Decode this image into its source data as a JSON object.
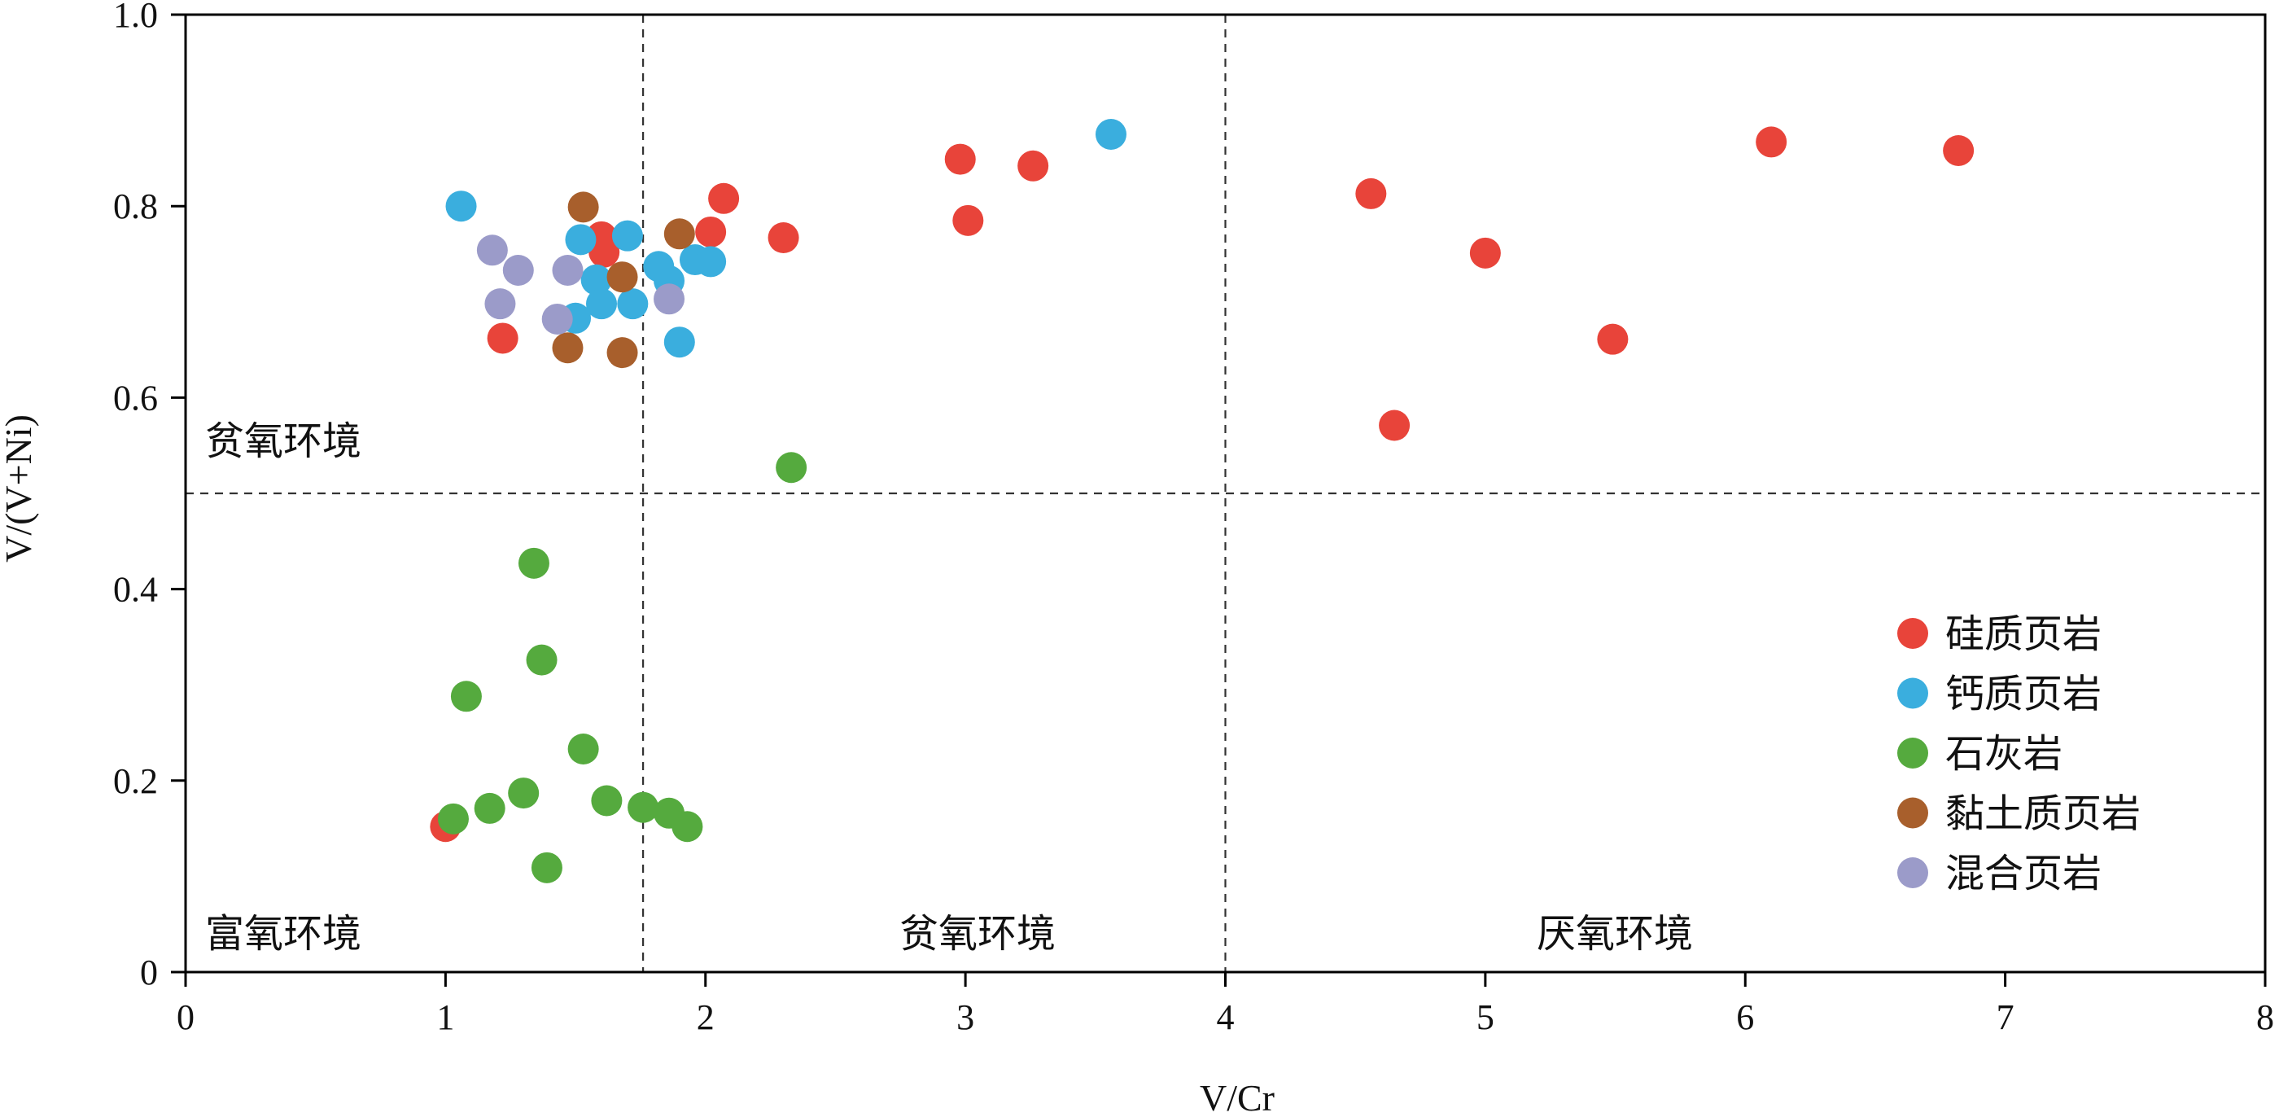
{
  "chart_data": {
    "type": "scatter",
    "xlabel": "V/Cr",
    "ylabel": "V/(V+Ni)",
    "xlim": [
      0,
      8
    ],
    "ylim": [
      0,
      1.0
    ],
    "x_ticks": [
      "0",
      "1",
      "2",
      "3",
      "4",
      "5",
      "6",
      "7",
      "8"
    ],
    "y_ticks": [
      "0",
      "0.2",
      "0.4",
      "0.6",
      "0.8",
      "1.0"
    ],
    "grid": false,
    "legend_position": "bottom-right",
    "divider_lines": {
      "vertical": [
        1.76,
        4.0
      ],
      "horizontal": [
        0.5
      ]
    },
    "zone_labels": {
      "top_left": "贫氧环境",
      "bottom_left": "富氧环境",
      "bottom_middle": "贫氧环境",
      "bottom_right": "厌氧环境"
    },
    "series": [
      {
        "name": "硅质页岩",
        "color": "#e8443a",
        "points": [
          [
            1.0,
            0.152
          ],
          [
            1.22,
            0.662
          ],
          [
            1.6,
            0.768
          ],
          [
            1.61,
            0.752
          ],
          [
            2.02,
            0.773
          ],
          [
            2.07,
            0.808
          ],
          [
            2.3,
            0.767
          ],
          [
            2.98,
            0.849
          ],
          [
            3.01,
            0.785
          ],
          [
            3.26,
            0.842
          ],
          [
            4.56,
            0.813
          ],
          [
            4.65,
            0.571
          ],
          [
            5.0,
            0.751
          ],
          [
            5.49,
            0.661
          ],
          [
            6.1,
            0.867
          ],
          [
            6.82,
            0.858
          ]
        ]
      },
      {
        "name": "钙质页岩",
        "color": "#3aaede",
        "points": [
          [
            1.06,
            0.8
          ],
          [
            1.52,
            0.765
          ],
          [
            1.5,
            0.683
          ],
          [
            1.58,
            0.723
          ],
          [
            1.6,
            0.698
          ],
          [
            1.7,
            0.769
          ],
          [
            1.72,
            0.698
          ],
          [
            1.82,
            0.737
          ],
          [
            1.86,
            0.722
          ],
          [
            1.9,
            0.658
          ],
          [
            1.96,
            0.744
          ],
          [
            2.02,
            0.742
          ],
          [
            3.56,
            0.875
          ]
        ]
      },
      {
        "name": "石灰岩",
        "color": "#55aa3e",
        "points": [
          [
            1.03,
            0.16
          ],
          [
            1.08,
            0.288
          ],
          [
            1.17,
            0.171
          ],
          [
            1.3,
            0.187
          ],
          [
            1.34,
            0.427
          ],
          [
            1.37,
            0.326
          ],
          [
            1.39,
            0.109
          ],
          [
            1.53,
            0.233
          ],
          [
            1.62,
            0.179
          ],
          [
            1.76,
            0.172
          ],
          [
            1.86,
            0.166
          ],
          [
            1.93,
            0.152
          ],
          [
            2.33,
            0.527
          ]
        ]
      },
      {
        "name": "黏土质页岩",
        "color": "#a85f2c",
        "points": [
          [
            1.47,
            0.652
          ],
          [
            1.53,
            0.799
          ],
          [
            1.68,
            0.726
          ],
          [
            1.68,
            0.647
          ],
          [
            1.9,
            0.771
          ]
        ]
      },
      {
        "name": "混合页岩",
        "color": "#9b9bc9",
        "points": [
          [
            1.18,
            0.754
          ],
          [
            1.21,
            0.698
          ],
          [
            1.28,
            0.733
          ],
          [
            1.43,
            0.682
          ],
          [
            1.47,
            0.733
          ],
          [
            1.86,
            0.703
          ]
        ]
      }
    ]
  }
}
